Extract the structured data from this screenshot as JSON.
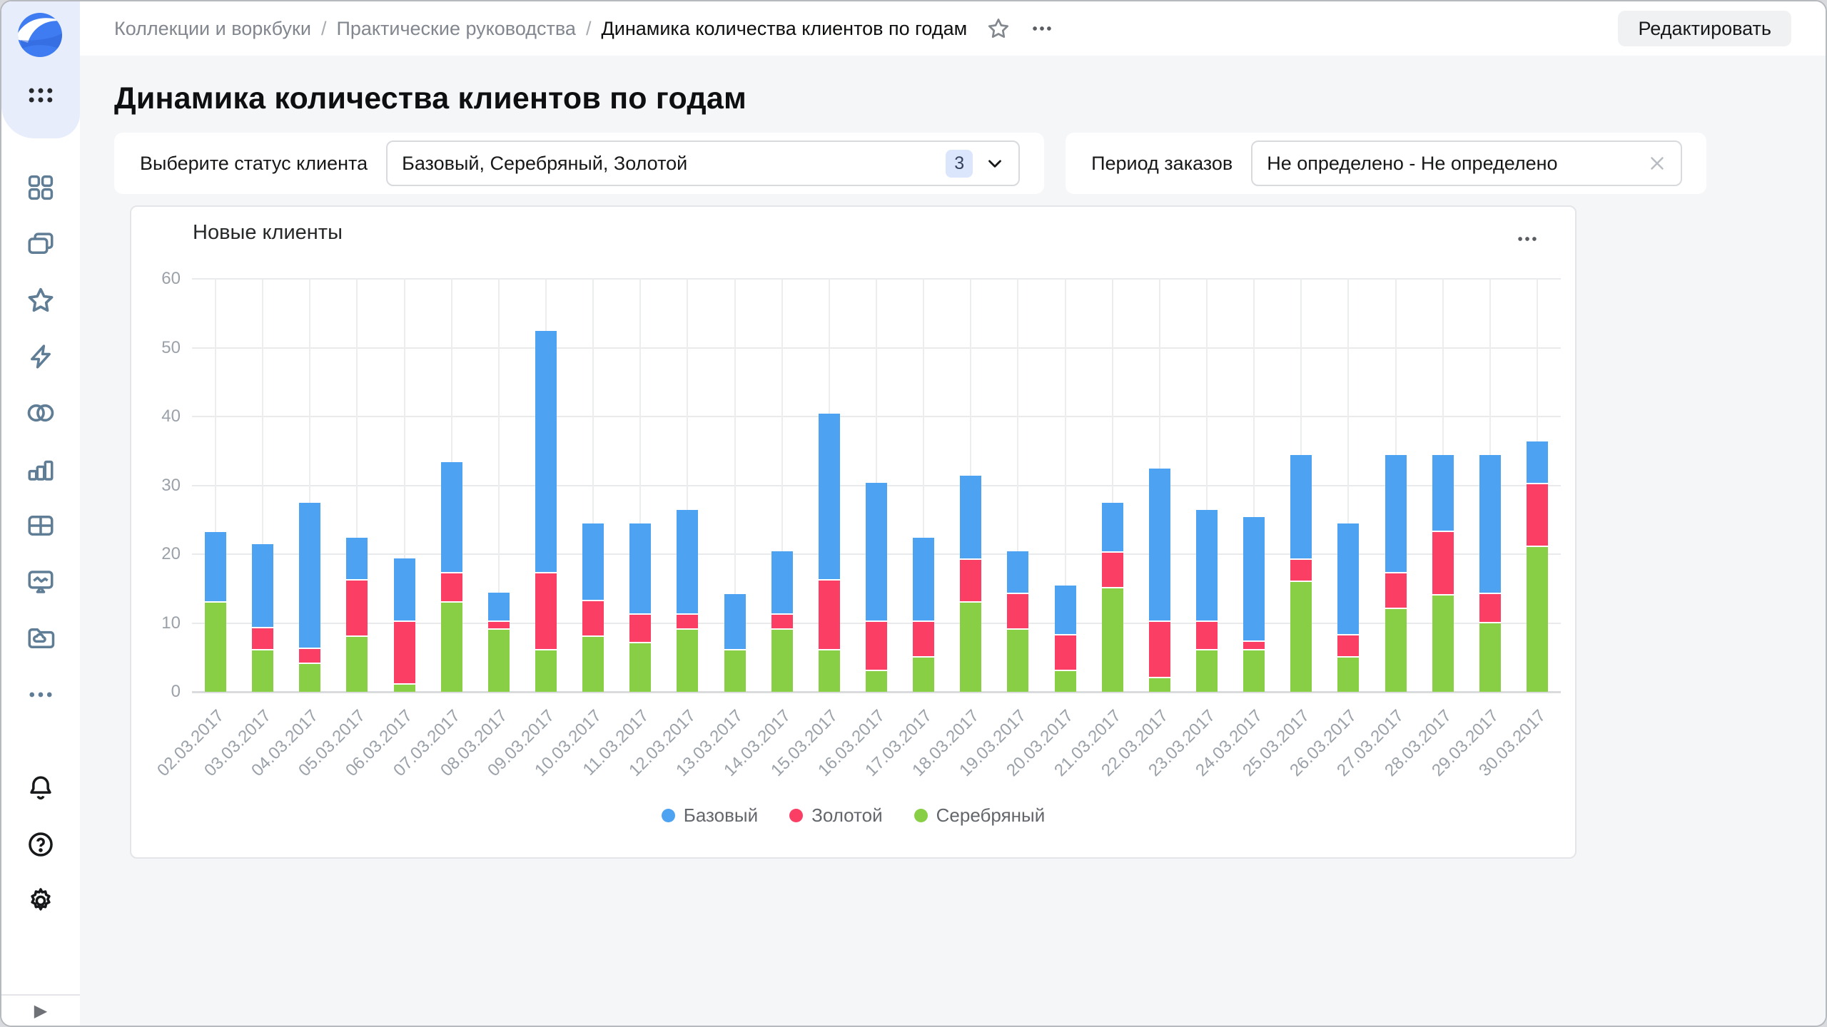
{
  "header": {
    "breadcrumbs": [
      "Коллекции и воркбуки",
      "Практические руководства",
      "Динамика количества клиентов по годам"
    ],
    "separator": "/",
    "edit_button": "Редактировать"
  },
  "page_title": "Динамика количества клиентов по годам",
  "filters": {
    "status": {
      "label": "Выберите статус клиента",
      "value": "Базовый, Серебряный, Золотой",
      "count": "3"
    },
    "period": {
      "label": "Период заказов",
      "value": "Не определено - Не определено"
    }
  },
  "chart_card": {
    "title": "Новые клиенты"
  },
  "sidebar_icon_names": [
    "datalens-logo",
    "apps-grid-icon",
    "dashboards-grid-icon",
    "collections-icon",
    "favorites-star-icon",
    "lightning-icon",
    "datasets-circles-icon",
    "bar-chart-icon",
    "table-icon",
    "monitor-pulse-icon",
    "folder-cloud-icon",
    "more-dots-icon",
    "notifications-bell-icon",
    "help-question-icon",
    "settings-gear-icon",
    "collapse-arrow-icon"
  ],
  "chart_data": {
    "type": "bar",
    "stacked": true,
    "title": "Новые клиенты",
    "categories": [
      "02.03.2017",
      "03.03.2017",
      "04.03.2017",
      "05.03.2017",
      "06.03.2017",
      "07.03.2017",
      "08.03.2017",
      "09.03.2017",
      "10.03.2017",
      "11.03.2017",
      "12.03.2017",
      "13.03.2017",
      "14.03.2017",
      "15.03.2017",
      "16.03.2017",
      "17.03.2017",
      "18.03.2017",
      "19.03.2017",
      "20.03.2017",
      "21.03.2017",
      "22.03.2017",
      "23.03.2017",
      "24.03.2017",
      "25.03.2017",
      "26.03.2017",
      "27.03.2017",
      "28.03.2017",
      "29.03.2017",
      "30.03.2017"
    ],
    "series": [
      {
        "name": "Базовый",
        "color": "#4da2f1",
        "values": [
          10,
          12,
          21,
          6,
          9,
          16,
          4,
          35,
          11,
          13,
          15,
          8,
          9,
          24,
          20,
          12,
          12,
          6,
          7,
          7,
          22,
          16,
          18,
          15,
          16,
          17,
          11,
          20,
          6
        ]
      },
      {
        "name": "Золотой",
        "color": "#fb3e64",
        "values": [
          0,
          3,
          2,
          8,
          9,
          4,
          1,
          11,
          5,
          4,
          2,
          0,
          2,
          10,
          7,
          5,
          6,
          5,
          5,
          5,
          8,
          4,
          1,
          3,
          3,
          5,
          9,
          4,
          9
        ]
      },
      {
        "name": "Серебряный",
        "color": "#88cf45",
        "values": [
          13,
          6,
          4,
          8,
          1,
          13,
          9,
          6,
          8,
          7,
          9,
          6,
          9,
          6,
          3,
          5,
          13,
          9,
          3,
          15,
          2,
          6,
          6,
          16,
          5,
          12,
          14,
          10,
          21
        ]
      }
    ],
    "stack_bottom_to_top": [
      "Серебряный",
      "Золотой",
      "Базовый"
    ],
    "ylim": [
      0,
      60
    ],
    "yticks": [
      0,
      10,
      20,
      30,
      40,
      50,
      60
    ],
    "grid": true,
    "legend_position": "bottom",
    "xlabel": "",
    "ylabel": ""
  },
  "colors": {
    "accent_blue": "#4da2f1",
    "accent_red": "#fb3e64",
    "accent_green": "#88cf45",
    "logo_blue": "#3f7cf2"
  }
}
